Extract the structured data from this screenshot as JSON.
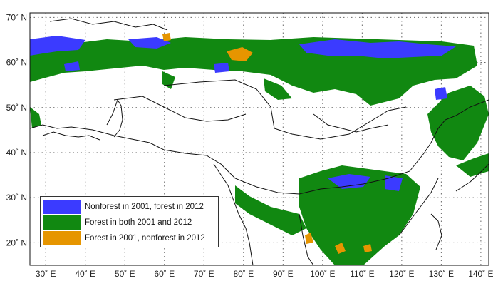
{
  "map": {
    "lat_labels": [
      {
        "lat": 70,
        "text": "70˚ N"
      },
      {
        "lat": 60,
        "text": "60˚ N"
      },
      {
        "lat": 50,
        "text": "50˚ N"
      },
      {
        "lat": 40,
        "text": "40˚ N"
      },
      {
        "lat": 30,
        "text": "30˚ N"
      },
      {
        "lat": 20,
        "text": "20˚ N"
      }
    ],
    "lon_labels": [
      {
        "lon": 30,
        "text": "30˚ E"
      },
      {
        "lon": 40,
        "text": "40˚ E"
      },
      {
        "lon": 50,
        "text": "50˚ E"
      },
      {
        "lon": 60,
        "text": "60˚ E"
      },
      {
        "lon": 70,
        "text": "70˚ E"
      },
      {
        "lon": 80,
        "text": "80˚ E"
      },
      {
        "lon": 90,
        "text": "90˚ E"
      },
      {
        "lon": 100,
        "text": "100˚ E"
      },
      {
        "lon": 110,
        "text": "110˚ E"
      },
      {
        "lon": 120,
        "text": "120˚ E"
      },
      {
        "lon": 130,
        "text": "130˚ E"
      },
      {
        "lon": 140,
        "text": "140˚ E"
      }
    ],
    "lon_range": [
      26,
      142
    ],
    "lat_range": [
      15,
      71
    ],
    "gridlines": "dotted"
  },
  "legend": {
    "items": [
      {
        "label": "Nonforest in 2001, forest in 2012",
        "color": "#3b3bff"
      },
      {
        "label": "Forest in both 2001 and 2012",
        "color": "#118811"
      },
      {
        "label": "Forest in 2001, nonforest in 2012",
        "color": "#e69500"
      }
    ]
  },
  "colors": {
    "gain": "#3b3bff",
    "stable": "#118811",
    "loss": "#e69500",
    "border": "#111111",
    "grid": "#666666"
  }
}
